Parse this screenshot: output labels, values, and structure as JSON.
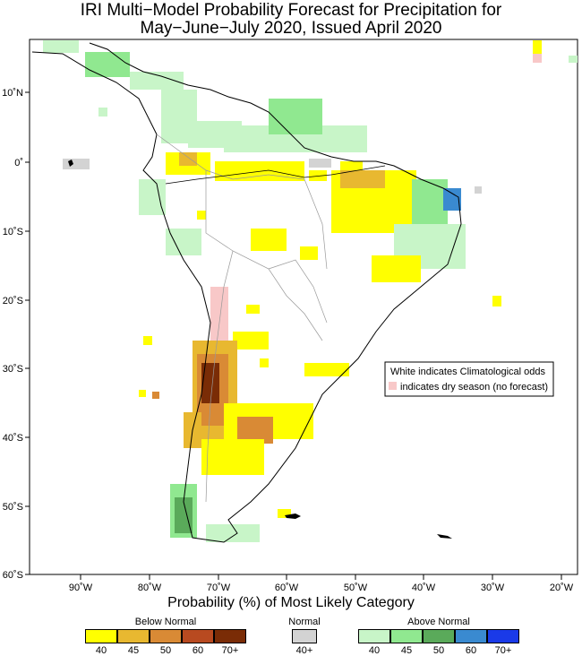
{
  "title": {
    "line1": "IRI Multi−Model Probability Forecast for Precipitation for",
    "line2": "May−June−July 2020, Issued April 2020"
  },
  "axes": {
    "lat_labels": [
      "10˚N",
      "0˚",
      "10˚S",
      "20˚S",
      "30˚S",
      "40˚S",
      "50˚S",
      "60˚S"
    ],
    "lon_labels": [
      "90˚W",
      "80˚W",
      "70˚W",
      "60˚W",
      "50˚W",
      "40˚W",
      "30˚W",
      "20˚W"
    ]
  },
  "legend_box": {
    "line1": "White indicates Climatological odds",
    "line2": "indicates dry season (no forecast)"
  },
  "colorbar": {
    "title": "Probability (%) of Most Likely Category",
    "below": {
      "label": "Below Normal",
      "ticks": [
        "40",
        "45",
        "50",
        "60",
        "70+"
      ],
      "colors": [
        "#ffff00",
        "#e8b830",
        "#d98a35",
        "#b84a20",
        "#7a2c06"
      ]
    },
    "normal": {
      "label": "Normal",
      "ticks": [
        "40+"
      ],
      "colors": [
        "#d3d3d3"
      ]
    },
    "above": {
      "label": "Above Normal",
      "ticks": [
        "40",
        "45",
        "50",
        "60",
        "70+"
      ],
      "colors": [
        "#c8f5c8",
        "#90e890",
        "#5aaa5a",
        "#3a8ad0",
        "#1a3ae8"
      ]
    }
  },
  "colors": {
    "dry": "#f8c8c8",
    "ocean": "#ffffff",
    "border": "#000000"
  }
}
